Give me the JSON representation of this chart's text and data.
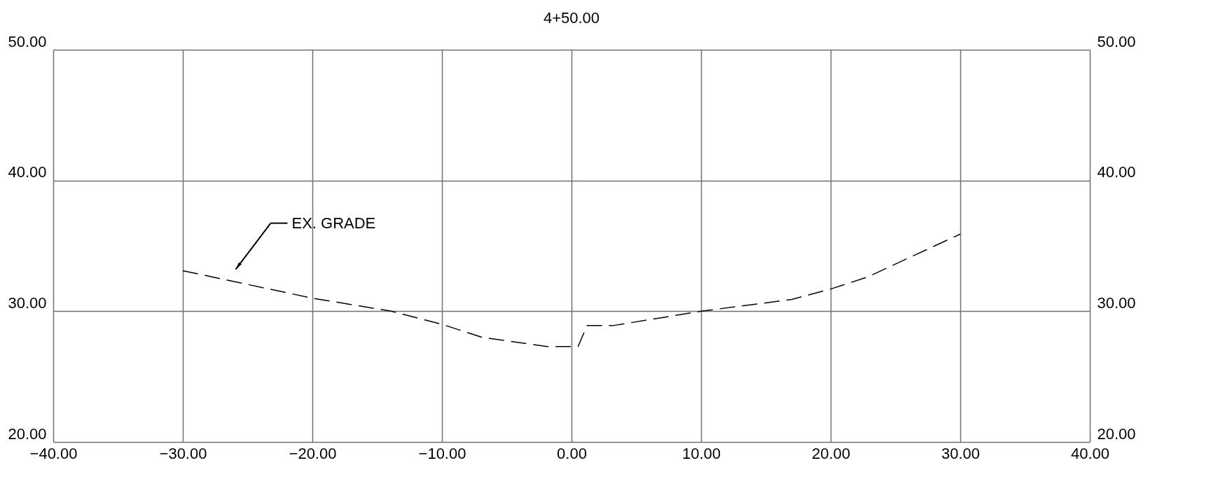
{
  "chart_data": {
    "type": "line",
    "title": "4+50.00",
    "series": [
      {
        "color": "#000000",
        "x": [
          -30,
          -20,
          -13.9,
          -10,
          -6.9,
          -1.9,
          0.5,
          1.2,
          3.2,
          10,
          17,
          20,
          22.8,
          30
        ],
        "values": [
          33.1,
          31.0,
          30.0,
          29.0,
          28.0,
          27.3,
          27.3,
          28.9,
          28.9,
          30.0,
          30.9,
          31.7,
          32.6,
          35.9
        ]
      }
    ],
    "xlim": [
      -40,
      40
    ],
    "xticks": [
      {
        "value": -40,
        "label": "−40.00"
      },
      {
        "value": -30,
        "label": "−30.00"
      },
      {
        "value": -20,
        "label": "−20.00"
      },
      {
        "value": -10,
        "label": "−10.00"
      },
      {
        "value": 0,
        "label": "0.00"
      },
      {
        "value": 10,
        "label": "10.00"
      },
      {
        "value": 20,
        "label": "20.00"
      },
      {
        "value": 30,
        "label": "30.00"
      },
      {
        "value": 40,
        "label": "40.00"
      }
    ],
    "ylim": [
      20,
      50
    ],
    "yticks": [
      {
        "value": 20,
        "label": "20.00"
      },
      {
        "value": 30,
        "label": "30.00"
      },
      {
        "value": 40,
        "label": "40.00"
      },
      {
        "value": 50,
        "label": "50.00"
      }
    ],
    "y2lim": [
      20,
      50
    ],
    "y2ticks": [
      {
        "value": 20,
        "label": "20.00"
      },
      {
        "value": 30,
        "label": "30.00"
      },
      {
        "value": 40,
        "label": "40.00"
      },
      {
        "value": 50,
        "label": "50.00"
      }
    ],
    "annotations": [
      "EX. GRADE"
    ],
    "grid": true,
    "line_style": "dashed",
    "marker": "none",
    "legend": false
  }
}
